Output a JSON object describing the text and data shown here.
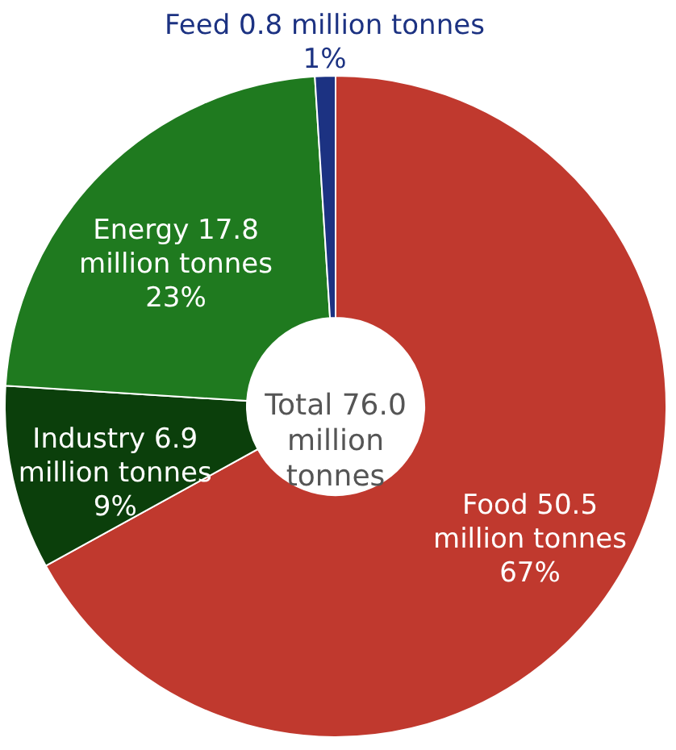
{
  "chart_data": {
    "type": "donut",
    "categories": [
      "Food 50.5 million tonnes",
      "Industry 6.9 million tonnes",
      "Energy 17.8 million tonnes",
      "Feed 0.8 million tonnes"
    ],
    "values": [
      67,
      9,
      23,
      1
    ],
    "colors": [
      "#c0392e",
      "#0b3f0b",
      "#1f7a1f",
      "#1c3282"
    ],
    "value_labels": [
      "67%",
      "9%",
      "23%",
      "1%"
    ],
    "annotations": [
      "Total 76.0 million tonnes"
    ]
  }
}
